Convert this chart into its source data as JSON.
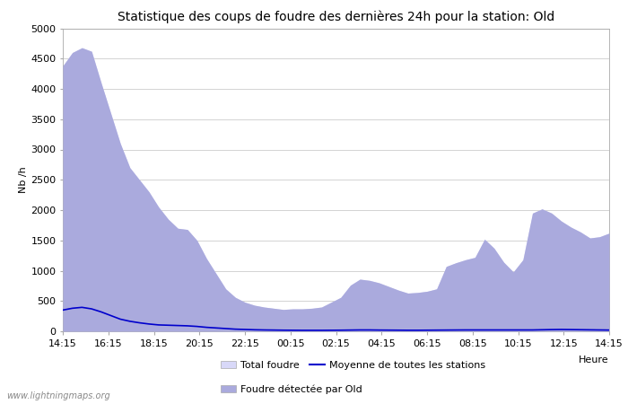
{
  "title": "Statistique des coups de foudre des dernières 24h pour la station: Old",
  "ylabel": "Nb /h",
  "xlabel": "Heure",
  "watermark": "www.lightningmaps.org",
  "xlim_labels": [
    "14:15",
    "16:15",
    "18:15",
    "20:15",
    "22:15",
    "00:15",
    "02:15",
    "04:15",
    "06:15",
    "08:15",
    "10:15",
    "12:15",
    "14:15"
  ],
  "ylim": [
    0,
    5000
  ],
  "yticks": [
    0,
    500,
    1000,
    1500,
    2000,
    2500,
    3000,
    3500,
    4000,
    4500,
    5000
  ],
  "color_total": "#d8d8f8",
  "color_detected": "#aaaadd",
  "color_mean_line": "#0000cc",
  "background_color": "#ffffff",
  "grid_color": "#cccccc",
  "legend_total": "Total foudre",
  "legend_detected": "Foudre détectée par Old",
  "legend_mean": "Moyenne de toutes les stations",
  "title_fontsize": 10,
  "axis_fontsize": 8,
  "tick_fontsize": 8,
  "total_foudre": [
    4380,
    4600,
    4680,
    4620,
    4100,
    3600,
    3100,
    2700,
    2500,
    2300,
    2050,
    1850,
    1700,
    1680,
    1500,
    1200,
    950,
    700,
    560,
    480,
    430,
    400,
    380,
    360,
    370,
    370,
    380,
    400,
    480,
    560,
    760,
    860,
    840,
    800,
    740,
    680,
    630,
    640,
    660,
    700,
    1070,
    1130,
    1180,
    1220,
    1520,
    1370,
    1140,
    980,
    1180,
    1950,
    2020,
    1950,
    1820,
    1720,
    1640,
    1540,
    1560,
    1620
  ],
  "detected_foudre": [
    4380,
    4600,
    4680,
    4620,
    4100,
    3600,
    3100,
    2700,
    2500,
    2300,
    2050,
    1850,
    1700,
    1680,
    1500,
    1200,
    950,
    700,
    560,
    480,
    430,
    400,
    380,
    360,
    370,
    370,
    380,
    400,
    480,
    560,
    760,
    860,
    840,
    800,
    740,
    680,
    630,
    640,
    660,
    700,
    1070,
    1130,
    1180,
    1220,
    1520,
    1370,
    1140,
    980,
    1180,
    1950,
    2020,
    1950,
    1820,
    1720,
    1640,
    1540,
    1560,
    1620
  ],
  "mean_line": [
    350,
    380,
    395,
    370,
    320,
    260,
    200,
    165,
    140,
    120,
    105,
    100,
    95,
    90,
    80,
    65,
    55,
    45,
    35,
    30,
    25,
    22,
    20,
    18,
    17,
    16,
    16,
    16,
    17,
    18,
    20,
    22,
    22,
    20,
    19,
    18,
    17,
    17,
    18,
    19,
    20,
    21,
    22,
    22,
    22,
    22,
    22,
    22,
    22,
    22,
    25,
    28,
    30,
    28,
    26,
    24,
    22,
    20
  ]
}
